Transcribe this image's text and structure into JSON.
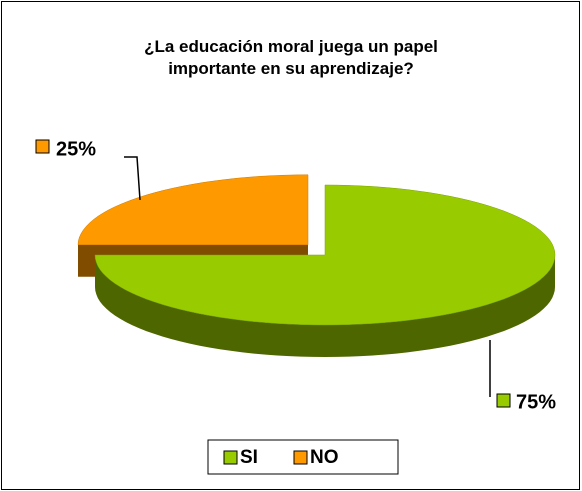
{
  "chart_data": {
    "type": "pie",
    "title": "¿La educación moral juega un papel importante en su aprendizaje?",
    "categories": [
      "SI",
      "NO"
    ],
    "values": [
      75,
      25
    ],
    "value_labels": [
      "75%",
      "25%"
    ],
    "colors": [
      "#99cc00",
      "#ff9900"
    ],
    "legend": "bottom"
  }
}
